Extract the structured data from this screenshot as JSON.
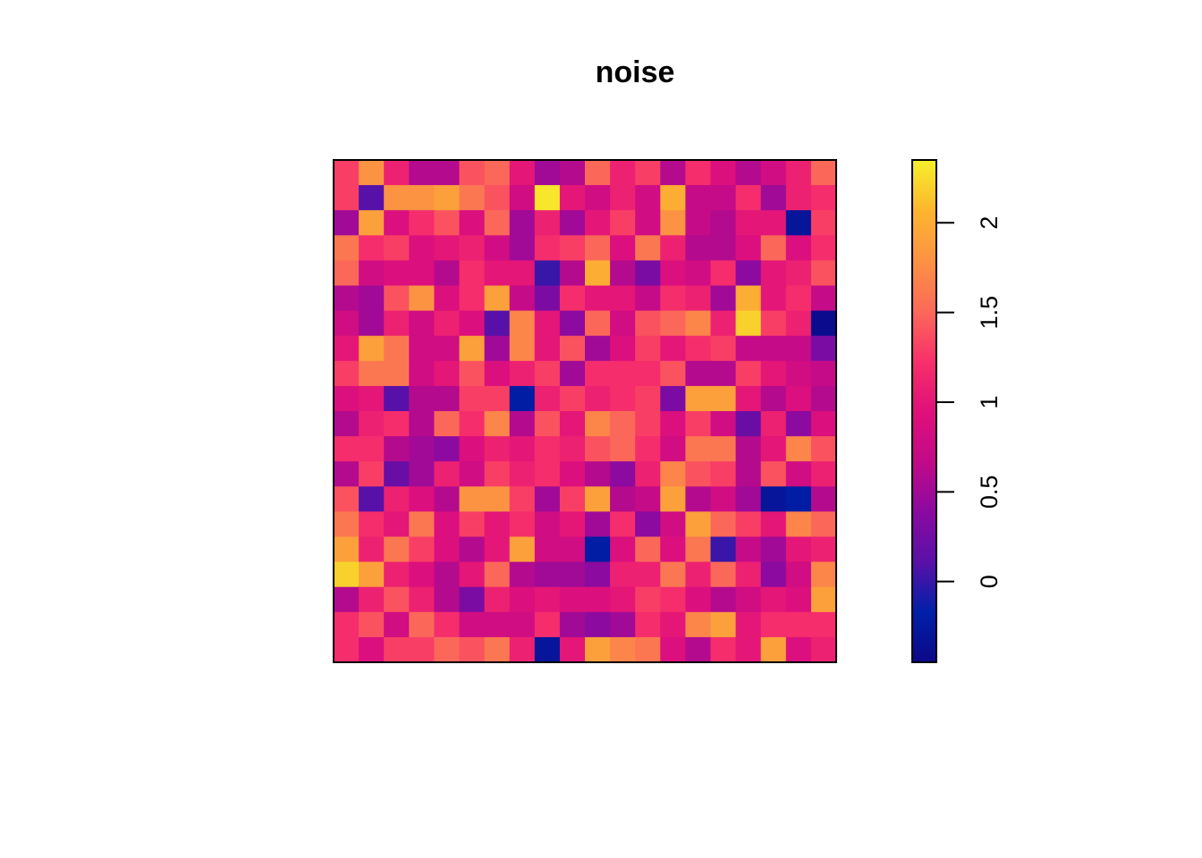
{
  "chart_data": {
    "type": "heatmap",
    "title": "noise",
    "xlabel": "",
    "ylabel": "",
    "grid": false,
    "legend": "right",
    "colorbar": {
      "min": -0.45,
      "max": 2.35,
      "ticks": [
        0,
        0.5,
        1,
        1.5,
        2
      ],
      "tick_labels": [
        "0",
        "0.5",
        "1",
        "1.5",
        "2"
      ],
      "colors": [
        "#0d0887",
        "#0020a8",
        "#5a10a8",
        "#8a0aa0",
        "#c20a88",
        "#e0107a",
        "#f8306a",
        "#fb6a58",
        "#fc9244",
        "#fcb62e",
        "#f6f02a"
      ]
    },
    "nrows": 20,
    "ncols": 20,
    "values": [
      [
        1.3,
        1.8,
        1.1,
        0.6,
        0.6,
        1.4,
        1.5,
        1.0,
        0.5,
        0.6,
        1.5,
        1.1,
        1.3,
        0.6,
        1.2,
        0.9,
        0.6,
        0.8,
        1.1,
        1.5
      ],
      [
        1.3,
        0.1,
        1.8,
        1.8,
        1.9,
        1.6,
        1.4,
        0.8,
        2.3,
        1.0,
        0.8,
        1.1,
        0.8,
        2.0,
        0.7,
        0.7,
        1.2,
        0.5,
        1.1,
        1.2
      ],
      [
        0.5,
        1.9,
        0.9,
        1.2,
        1.4,
        0.9,
        1.5,
        0.5,
        1.1,
        0.5,
        1.0,
        1.3,
        0.8,
        1.8,
        0.7,
        0.6,
        1.0,
        1.0,
        -0.3,
        1.3
      ],
      [
        1.6,
        1.2,
        1.3,
        0.9,
        1.0,
        1.1,
        0.8,
        0.5,
        1.2,
        1.3,
        1.5,
        0.9,
        1.6,
        1.1,
        0.6,
        0.6,
        0.9,
        1.5,
        0.9,
        1.2
      ],
      [
        1.5,
        0.8,
        0.9,
        0.9,
        0.6,
        1.2,
        1.0,
        1.0,
        0.0,
        0.6,
        2.0,
        0.6,
        0.3,
        0.9,
        0.8,
        1.2,
        0.4,
        1.0,
        1.1,
        1.4
      ],
      [
        0.6,
        0.5,
        1.4,
        1.8,
        0.9,
        1.2,
        1.9,
        0.7,
        0.3,
        1.2,
        1.0,
        1.0,
        0.7,
        1.2,
        1.1,
        0.5,
        2.0,
        1.0,
        1.2,
        0.7
      ],
      [
        0.8,
        0.5,
        1.1,
        0.8,
        1.1,
        0.9,
        0.1,
        1.7,
        1.0,
        0.4,
        1.5,
        0.8,
        1.4,
        1.5,
        1.7,
        1.1,
        2.2,
        1.3,
        1.1,
        -0.4
      ],
      [
        1.0,
        1.9,
        1.6,
        0.8,
        0.8,
        1.9,
        0.5,
        1.7,
        1.0,
        1.4,
        0.5,
        0.9,
        1.3,
        1.0,
        1.2,
        1.3,
        0.7,
        0.7,
        0.7,
        0.3
      ],
      [
        1.3,
        1.6,
        1.6,
        0.8,
        1.0,
        1.4,
        0.9,
        1.1,
        1.3,
        0.5,
        1.2,
        1.2,
        1.2,
        1.4,
        0.6,
        0.6,
        1.3,
        1.0,
        0.8,
        0.7
      ],
      [
        0.9,
        1.0,
        0.1,
        0.6,
        0.6,
        1.3,
        1.3,
        -0.2,
        1.1,
        1.3,
        1.1,
        1.2,
        1.3,
        0.3,
        1.9,
        1.9,
        1.0,
        0.6,
        0.9,
        0.6
      ],
      [
        0.6,
        1.1,
        1.2,
        0.6,
        1.5,
        1.2,
        1.7,
        0.6,
        1.4,
        1.0,
        1.7,
        1.5,
        1.3,
        0.9,
        1.3,
        0.8,
        0.2,
        1.1,
        0.4,
        0.9
      ],
      [
        1.2,
        1.2,
        0.6,
        0.5,
        0.4,
        0.9,
        1.1,
        1.0,
        1.2,
        1.1,
        1.4,
        1.5,
        1.2,
        0.8,
        1.6,
        1.6,
        0.6,
        1.0,
        1.7,
        1.4
      ],
      [
        0.6,
        1.3,
        0.2,
        0.5,
        1.1,
        0.8,
        1.3,
        1.1,
        1.2,
        0.9,
        0.6,
        0.4,
        1.1,
        1.7,
        1.4,
        1.3,
        0.6,
        1.4,
        0.8,
        1.1
      ],
      [
        1.4,
        0.1,
        1.1,
        0.9,
        0.6,
        1.8,
        1.8,
        1.3,
        0.5,
        1.3,
        1.9,
        0.6,
        0.7,
        1.9,
        0.6,
        0.8,
        0.5,
        -0.3,
        -0.2,
        0.6
      ],
      [
        1.6,
        1.2,
        1.0,
        1.6,
        0.9,
        1.3,
        1.0,
        1.2,
        0.8,
        1.0,
        0.5,
        1.2,
        0.4,
        0.8,
        1.9,
        1.5,
        1.3,
        1.0,
        1.7,
        1.5
      ],
      [
        1.9,
        1.1,
        1.6,
        1.3,
        0.9,
        0.6,
        1.0,
        1.9,
        0.8,
        0.8,
        -0.2,
        0.9,
        1.5,
        0.9,
        1.6,
        0.0,
        0.7,
        0.5,
        1.0,
        1.1
      ],
      [
        2.2,
        1.9,
        1.1,
        0.9,
        0.6,
        1.0,
        1.5,
        0.6,
        0.5,
        0.5,
        0.4,
        1.1,
        1.1,
        1.6,
        1.1,
        1.5,
        1.1,
        0.4,
        0.8,
        1.7
      ],
      [
        0.6,
        1.1,
        1.4,
        1.1,
        0.6,
        0.3,
        1.1,
        0.9,
        1.0,
        0.9,
        0.9,
        1.0,
        1.3,
        1.2,
        0.9,
        0.6,
        0.8,
        1.0,
        0.9,
        1.9
      ],
      [
        1.2,
        1.4,
        0.8,
        1.5,
        1.2,
        0.8,
        0.8,
        0.8,
        1.2,
        0.5,
        0.4,
        0.5,
        1.2,
        1.0,
        1.7,
        1.9,
        1.0,
        1.2,
        1.2,
        1.2
      ],
      [
        1.2,
        0.9,
        1.3,
        1.3,
        1.5,
        1.4,
        1.6,
        1.1,
        -0.3,
        1.0,
        1.9,
        1.7,
        1.6,
        0.9,
        0.6,
        1.2,
        1.0,
        1.9,
        0.9,
        1.1
      ]
    ]
  }
}
